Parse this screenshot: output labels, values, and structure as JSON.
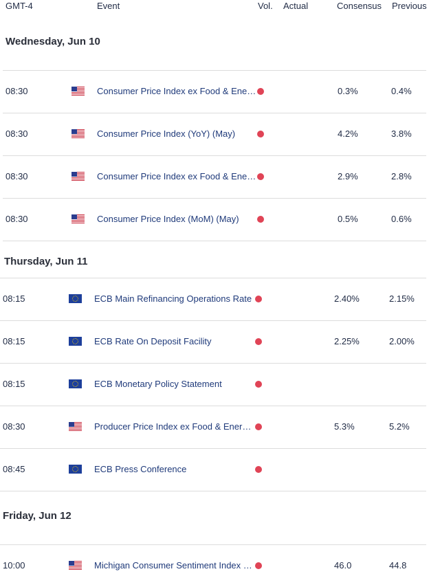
{
  "header": {
    "timezone": "GMT-4",
    "event": "Event",
    "vol": "Vol.",
    "actual": "Actual",
    "consensus": "Consensus",
    "previous": "Previous"
  },
  "colors": {
    "importance_high": "#e04456",
    "event_link": "#1f3a7a"
  },
  "days": [
    {
      "label": "Wednesday, Jun 10",
      "events": [
        {
          "time": "08:30",
          "flag": "us-flag-icon",
          "event": "Consumer Price Index ex Food & Energy (YoY) (May)",
          "actual": "",
          "consensus": "0.3%",
          "previous": "0.4%"
        },
        {
          "time": "08:30",
          "flag": "us-flag-icon",
          "event": "Consumer Price Index (YoY) (May)",
          "actual": "",
          "consensus": "4.2%",
          "previous": "3.8%"
        },
        {
          "time": "08:30",
          "flag": "us-flag-icon",
          "event": "Consumer Price Index ex Food & Energy (YoY) (May)",
          "actual": "",
          "consensus": "2.9%",
          "previous": "2.8%"
        },
        {
          "time": "08:30",
          "flag": "us-flag-icon",
          "event": "Consumer Price Index (MoM) (May)",
          "actual": "",
          "consensus": "0.5%",
          "previous": "0.6%"
        }
      ]
    },
    {
      "label": "Thursday, Jun 11",
      "events": [
        {
          "time": "08:15",
          "flag": "eu-flag-icon",
          "event": "ECB Main Refinancing Operations Rate",
          "actual": "",
          "consensus": "2.40%",
          "previous": "2.15%"
        },
        {
          "time": "08:15",
          "flag": "eu-flag-icon",
          "event": "ECB Rate On Deposit Facility",
          "actual": "",
          "consensus": "2.25%",
          "previous": "2.00%"
        },
        {
          "time": "08:15",
          "flag": "eu-flag-icon",
          "event": "ECB Monetary Policy Statement",
          "actual": "",
          "consensus": "",
          "previous": ""
        },
        {
          "time": "08:30",
          "flag": "us-flag-icon",
          "event": "Producer Price Index ex Food & Energy (YoY) (May)",
          "actual": "",
          "consensus": "5.3%",
          "previous": "5.2%"
        },
        {
          "time": "08:45",
          "flag": "eu-flag-icon",
          "event": "ECB Press Conference",
          "actual": "",
          "consensus": "",
          "previous": ""
        }
      ]
    },
    {
      "label": "Friday, Jun 12",
      "events": [
        {
          "time": "10:00",
          "flag": "us-flag-icon",
          "event": "Michigan Consumer Sentiment Index (Jun)",
          "actual": "",
          "consensus": "46.0",
          "previous": "44.8"
        }
      ]
    }
  ]
}
